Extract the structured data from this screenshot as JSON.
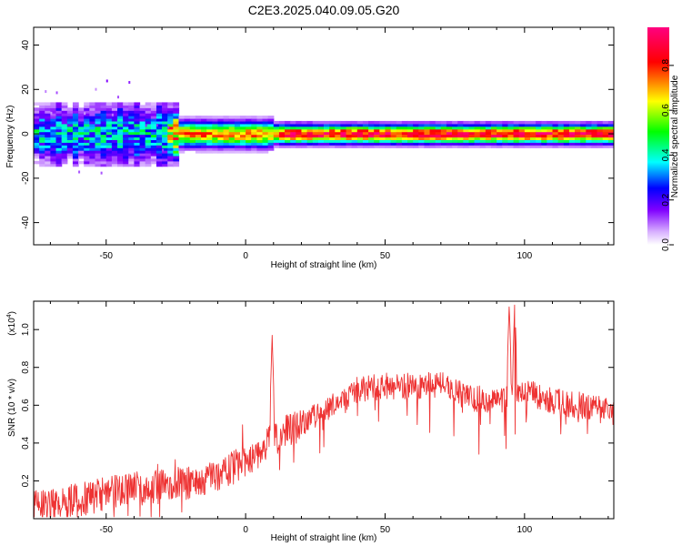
{
  "title": "C2E3.2025.040.09.05.G20",
  "chart_data": [
    {
      "type": "heatmap",
      "title": "C2E3.2025.040.09.05.G20",
      "xlabel": "Height of straight line (km)",
      "ylabel": "Frequency (Hz)",
      "xlim": [
        -76,
        132
      ],
      "ylim": [
        -50,
        48
      ],
      "x_ticks": [
        -50,
        0,
        50,
        100
      ],
      "y_ticks": [
        -40,
        -20,
        0,
        20,
        40
      ],
      "colorbar": {
        "label": "Normalized spectral amplitude",
        "range": [
          0,
          0.97
        ],
        "ticks": [
          0.0,
          0.2,
          0.4,
          0.6,
          0.8
        ],
        "colormap": [
          "#ffffff",
          "#c080ff",
          "#0000ff",
          "#00ffff",
          "#00ff00",
          "#ffff00",
          "#ff0000",
          "#ff0080"
        ]
      },
      "ridge": {
        "center_frequency": 0,
        "segments": [
          {
            "x_range": [
              -76,
              -30
            ],
            "peak": 0.35
          },
          {
            "x_range": [
              -30,
              10
            ],
            "peak": 0.75
          },
          {
            "x_range": [
              10,
              132
            ],
            "peak": 0.9
          }
        ]
      }
    },
    {
      "type": "line",
      "xlabel": "Height of straight line (km)",
      "ylabel": "SNR (10 * v/v)",
      "y_scale_label": "(x10",
      "y_scale_exp": "4",
      "y_scale_close": ")",
      "xlim": [
        -76,
        132
      ],
      "ylim": [
        0,
        1.15
      ],
      "x_ticks": [
        -50,
        0,
        50,
        100
      ],
      "y_ticks": [
        0.2,
        0.4,
        0.6,
        0.8,
        1.0
      ],
      "line_color": "#ee3333",
      "envelope": {
        "x": [
          -76,
          -60,
          -45,
          -30,
          -15,
          0,
          10,
          20,
          30,
          40,
          50,
          60,
          70,
          80,
          90,
          100,
          110,
          120,
          132
        ],
        "y": [
          0.06,
          0.1,
          0.15,
          0.17,
          0.2,
          0.3,
          0.42,
          0.5,
          0.58,
          0.68,
          0.7,
          0.7,
          0.71,
          0.64,
          0.62,
          0.68,
          0.62,
          0.6,
          0.56
        ]
      },
      "peaks": [
        {
          "x": 9.5,
          "y": 0.97
        },
        {
          "x": 94.5,
          "y": 1.14
        },
        {
          "x": 96.5,
          "y": 1.16
        }
      ]
    }
  ]
}
